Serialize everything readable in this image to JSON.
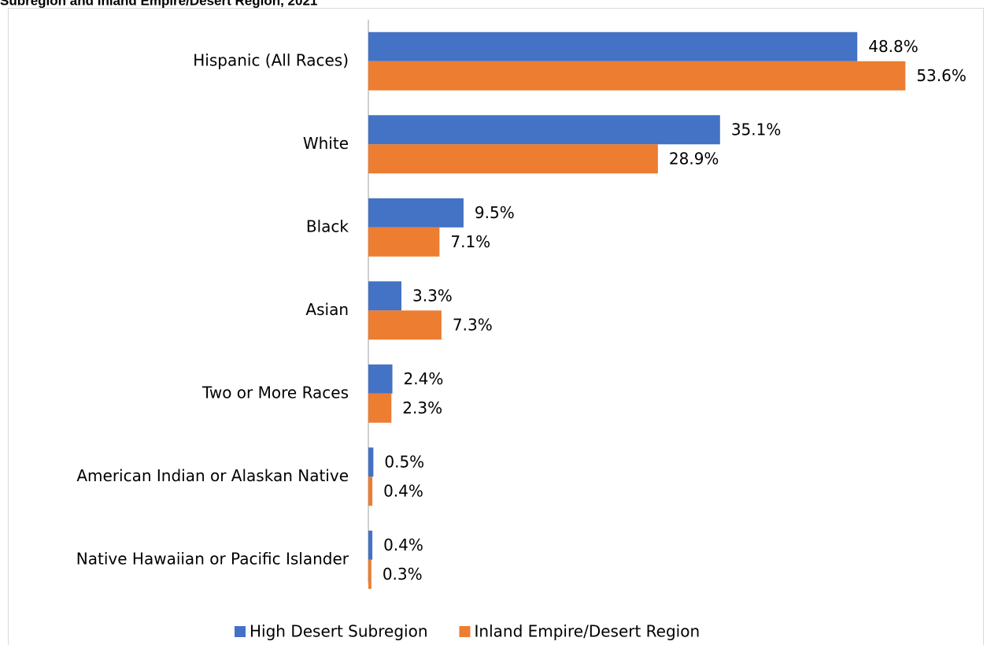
{
  "chart_data": {
    "type": "bar",
    "orientation": "horizontal",
    "title": "Subregion and Inland Empire/Desert Region, 2021",
    "categories": [
      "Hispanic (All Races)",
      "White",
      "Black",
      "Asian",
      "Two or More Races",
      "American Indian or Alaskan Native",
      "Native Hawaiian or Pacific Islander"
    ],
    "series": [
      {
        "name": "High Desert Subregion",
        "color": "#4472c4",
        "values": [
          48.8,
          35.1,
          9.5,
          3.3,
          2.4,
          0.5,
          0.4
        ],
        "value_labels": [
          "48.8%",
          "35.1%",
          "9.5%",
          "3.3%",
          "2.4%",
          "0.5%",
          "0.4%"
        ]
      },
      {
        "name": "Inland Empire/Desert Region",
        "color": "#ed7d31",
        "values": [
          53.6,
          28.9,
          7.1,
          7.3,
          2.3,
          0.4,
          0.3
        ],
        "value_labels": [
          "53.6%",
          "28.9%",
          "7.1%",
          "7.3%",
          "2.3%",
          "0.4%",
          "0.3%"
        ]
      }
    ],
    "legend": "bottom"
  }
}
